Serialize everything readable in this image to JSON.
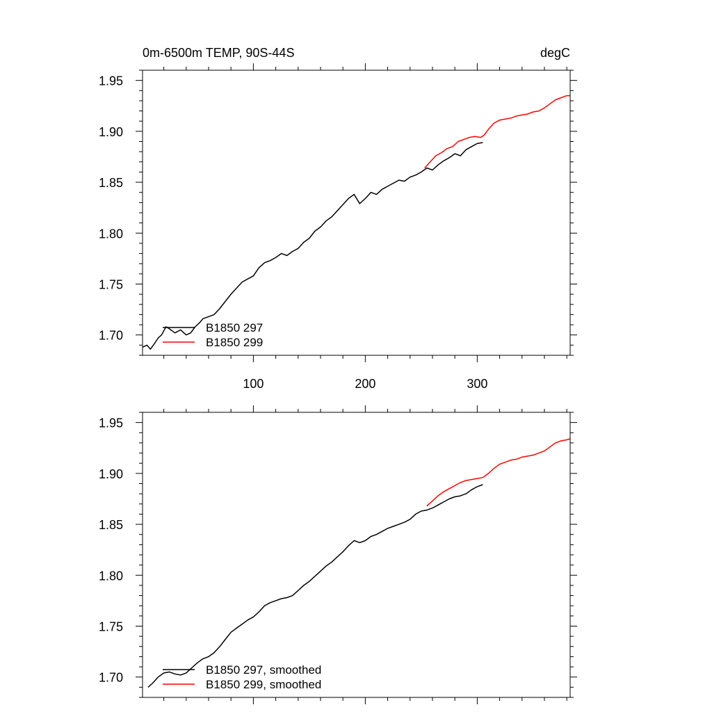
{
  "chart_data": [
    {
      "type": "line",
      "title_left": "0m-6500m TEMP, 90S-44S",
      "title_right": "degC",
      "xlim": [
        1,
        383
      ],
      "ylim": [
        1.68,
        1.96
      ],
      "x_ticks": [
        100,
        200,
        300
      ],
      "x_tick_labels": [
        "100",
        "200",
        "300"
      ],
      "y_ticks": [
        1.7,
        1.75,
        1.8,
        1.85,
        1.9,
        1.95
      ],
      "y_tick_labels": [
        "1.70",
        "1.75",
        "1.80",
        "1.85",
        "1.90",
        "1.95"
      ],
      "legend_position": "bottom-left",
      "series": [
        {
          "name": "B1850 297",
          "color": "#000000",
          "points": [
            [
              1,
              1.688
            ],
            [
              5,
              1.69
            ],
            [
              8,
              1.686
            ],
            [
              12,
              1.692
            ],
            [
              15,
              1.697
            ],
            [
              18,
              1.7
            ],
            [
              22,
              1.708
            ],
            [
              25,
              1.706
            ],
            [
              30,
              1.702
            ],
            [
              35,
              1.705
            ],
            [
              40,
              1.7
            ],
            [
              44,
              1.702
            ],
            [
              48,
              1.708
            ],
            [
              52,
              1.712
            ],
            [
              55,
              1.716
            ],
            [
              60,
              1.718
            ],
            [
              65,
              1.72
            ],
            [
              70,
              1.726
            ],
            [
              75,
              1.733
            ],
            [
              80,
              1.74
            ],
            [
              85,
              1.746
            ],
            [
              90,
              1.752
            ],
            [
              95,
              1.755
            ],
            [
              100,
              1.758
            ],
            [
              105,
              1.766
            ],
            [
              110,
              1.771
            ],
            [
              115,
              1.773
            ],
            [
              120,
              1.776
            ],
            [
              125,
              1.78
            ],
            [
              130,
              1.778
            ],
            [
              135,
              1.782
            ],
            [
              140,
              1.785
            ],
            [
              145,
              1.791
            ],
            [
              150,
              1.795
            ],
            [
              155,
              1.802
            ],
            [
              160,
              1.806
            ],
            [
              165,
              1.812
            ],
            [
              170,
              1.816
            ],
            [
              175,
              1.822
            ],
            [
              180,
              1.828
            ],
            [
              185,
              1.834
            ],
            [
              190,
              1.838
            ],
            [
              195,
              1.829
            ],
            [
              200,
              1.834
            ],
            [
              205,
              1.84
            ],
            [
              210,
              1.838
            ],
            [
              215,
              1.843
            ],
            [
              220,
              1.846
            ],
            [
              225,
              1.849
            ],
            [
              230,
              1.852
            ],
            [
              235,
              1.851
            ],
            [
              240,
              1.855
            ],
            [
              245,
              1.857
            ],
            [
              250,
              1.86
            ],
            [
              255,
              1.864
            ],
            [
              260,
              1.862
            ],
            [
              265,
              1.867
            ],
            [
              270,
              1.871
            ],
            [
              275,
              1.874
            ],
            [
              280,
              1.878
            ],
            [
              285,
              1.876
            ],
            [
              290,
              1.882
            ],
            [
              295,
              1.885
            ],
            [
              300,
              1.888
            ],
            [
              305,
              1.889
            ]
          ]
        },
        {
          "name": "B1850 299",
          "color": "#ff0000",
          "points": [
            [
              253,
              1.864
            ],
            [
              258,
              1.87
            ],
            [
              263,
              1.876
            ],
            [
              268,
              1.879
            ],
            [
              273,
              1.883
            ],
            [
              278,
              1.885
            ],
            [
              283,
              1.89
            ],
            [
              288,
              1.892
            ],
            [
              293,
              1.894
            ],
            [
              298,
              1.895
            ],
            [
              303,
              1.894
            ],
            [
              306,
              1.896
            ],
            [
              310,
              1.902
            ],
            [
              315,
              1.908
            ],
            [
              320,
              1.911
            ],
            [
              325,
              1.912
            ],
            [
              330,
              1.913
            ],
            [
              335,
              1.915
            ],
            [
              340,
              1.916
            ],
            [
              345,
              1.917
            ],
            [
              350,
              1.919
            ],
            [
              355,
              1.92
            ],
            [
              360,
              1.923
            ],
            [
              365,
              1.927
            ],
            [
              370,
              1.931
            ],
            [
              375,
              1.933
            ],
            [
              380,
              1.935
            ],
            [
              383,
              1.935
            ]
          ]
        }
      ]
    },
    {
      "type": "line",
      "xlim": [
        1,
        383
      ],
      "ylim": [
        1.68,
        1.96
      ],
      "x_ticks": [
        100,
        200,
        300
      ],
      "y_ticks": [
        1.7,
        1.75,
        1.8,
        1.85,
        1.9,
        1.95
      ],
      "y_tick_labels": [
        "1.70",
        "1.75",
        "1.80",
        "1.85",
        "1.90",
        "1.95"
      ],
      "legend_position": "bottom-left",
      "series": [
        {
          "name": "B1850 297, smoothed",
          "color": "#000000",
          "points": [
            [
              6,
              1.69
            ],
            [
              10,
              1.694
            ],
            [
              15,
              1.7
            ],
            [
              20,
              1.704
            ],
            [
              25,
              1.705
            ],
            [
              30,
              1.703
            ],
            [
              35,
              1.702
            ],
            [
              40,
              1.704
            ],
            [
              45,
              1.709
            ],
            [
              50,
              1.714
            ],
            [
              55,
              1.718
            ],
            [
              60,
              1.72
            ],
            [
              65,
              1.724
            ],
            [
              70,
              1.73
            ],
            [
              75,
              1.737
            ],
            [
              80,
              1.744
            ],
            [
              85,
              1.748
            ],
            [
              90,
              1.752
            ],
            [
              95,
              1.756
            ],
            [
              100,
              1.759
            ],
            [
              105,
              1.764
            ],
            [
              110,
              1.77
            ],
            [
              115,
              1.773
            ],
            [
              120,
              1.775
            ],
            [
              125,
              1.777
            ],
            [
              130,
              1.778
            ],
            [
              135,
              1.78
            ],
            [
              140,
              1.785
            ],
            [
              145,
              1.79
            ],
            [
              150,
              1.794
            ],
            [
              155,
              1.799
            ],
            [
              160,
              1.804
            ],
            [
              165,
              1.809
            ],
            [
              170,
              1.813
            ],
            [
              175,
              1.818
            ],
            [
              180,
              1.823
            ],
            [
              185,
              1.829
            ],
            [
              190,
              1.834
            ],
            [
              195,
              1.832
            ],
            [
              200,
              1.834
            ],
            [
              205,
              1.838
            ],
            [
              210,
              1.84
            ],
            [
              215,
              1.843
            ],
            [
              220,
              1.846
            ],
            [
              225,
              1.848
            ],
            [
              230,
              1.85
            ],
            [
              235,
              1.852
            ],
            [
              240,
              1.855
            ],
            [
              245,
              1.86
            ],
            [
              250,
              1.863
            ],
            [
              255,
              1.864
            ],
            [
              260,
              1.866
            ],
            [
              265,
              1.869
            ],
            [
              270,
              1.872
            ],
            [
              275,
              1.875
            ],
            [
              280,
              1.877
            ],
            [
              285,
              1.878
            ],
            [
              290,
              1.88
            ],
            [
              295,
              1.884
            ],
            [
              300,
              1.887
            ],
            [
              305,
              1.889
            ]
          ]
        },
        {
          "name": "B1850 299, smoothed",
          "color": "#ff0000",
          "points": [
            [
              255,
              1.868
            ],
            [
              260,
              1.873
            ],
            [
              265,
              1.878
            ],
            [
              270,
              1.882
            ],
            [
              275,
              1.885
            ],
            [
              280,
              1.888
            ],
            [
              285,
              1.891
            ],
            [
              290,
              1.893
            ],
            [
              295,
              1.894
            ],
            [
              300,
              1.895
            ],
            [
              305,
              1.896
            ],
            [
              310,
              1.9
            ],
            [
              315,
              1.905
            ],
            [
              320,
              1.909
            ],
            [
              325,
              1.911
            ],
            [
              330,
              1.913
            ],
            [
              335,
              1.914
            ],
            [
              340,
              1.916
            ],
            [
              345,
              1.917
            ],
            [
              350,
              1.918
            ],
            [
              355,
              1.92
            ],
            [
              360,
              1.922
            ],
            [
              365,
              1.926
            ],
            [
              370,
              1.93
            ],
            [
              375,
              1.932
            ],
            [
              380,
              1.933
            ],
            [
              383,
              1.934
            ]
          ]
        }
      ]
    }
  ]
}
